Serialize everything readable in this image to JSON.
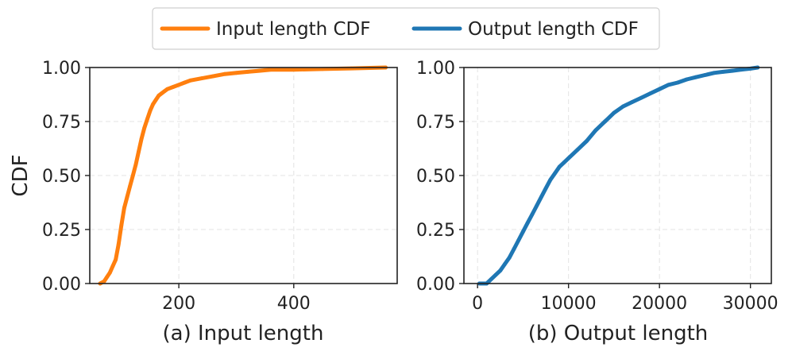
{
  "legend": {
    "location": "top-center",
    "entries": [
      {
        "label": "Input length CDF",
        "color": "#ff7f0e"
      },
      {
        "label": "Output length CDF",
        "color": "#1f77b4"
      }
    ]
  },
  "chart_data": [
    {
      "type": "line",
      "title": "",
      "xlabel": "(a) Input length",
      "ylabel": "CDF",
      "xlim": [
        45,
        580
      ],
      "ylim": [
        0,
        1
      ],
      "xticks": [
        200,
        400
      ],
      "xtick_labels": [
        "200",
        "400"
      ],
      "yticks": [
        0,
        0.25,
        0.5,
        0.75,
        1.0
      ],
      "ytick_labels": [
        "0.00",
        "0.25",
        "0.50",
        "0.75",
        "1.00"
      ],
      "grid": true,
      "series": [
        {
          "name": "Input length CDF",
          "color": "#ff7f0e",
          "x": [
            63,
            70,
            75,
            80,
            85,
            90,
            95,
            100,
            105,
            110,
            115,
            120,
            125,
            130,
            135,
            140,
            145,
            150,
            155,
            160,
            165,
            170,
            175,
            180,
            190,
            200,
            210,
            220,
            240,
            260,
            280,
            300,
            320,
            340,
            360,
            400,
            450,
            500,
            560
          ],
          "y": [
            0.0,
            0.01,
            0.03,
            0.05,
            0.08,
            0.11,
            0.18,
            0.27,
            0.35,
            0.4,
            0.45,
            0.5,
            0.55,
            0.61,
            0.67,
            0.72,
            0.76,
            0.8,
            0.83,
            0.85,
            0.87,
            0.88,
            0.89,
            0.9,
            0.91,
            0.92,
            0.93,
            0.94,
            0.95,
            0.96,
            0.97,
            0.975,
            0.98,
            0.985,
            0.99,
            0.99,
            0.993,
            0.996,
            1.0
          ]
        }
      ]
    },
    {
      "type": "line",
      "title": "",
      "xlabel": "(b) Output length",
      "ylabel": "",
      "xlim": [
        -1500,
        32300
      ],
      "ylim": [
        0,
        1
      ],
      "xticks": [
        0,
        10000,
        20000,
        30000
      ],
      "xtick_labels": [
        "0",
        "10000",
        "20000",
        "30000"
      ],
      "yticks": [
        0,
        0.25,
        0.5,
        0.75,
        1.0
      ],
      "ytick_labels": [
        "0.00",
        "0.25",
        "0.50",
        "0.75",
        "1.00"
      ],
      "grid": true,
      "series": [
        {
          "name": "Output length CDF",
          "color": "#1f77b4",
          "x": [
            200,
            1000,
            1500,
            2000,
            2500,
            3000,
            3500,
            4000,
            4500,
            5000,
            5500,
            6000,
            6500,
            7000,
            7500,
            8000,
            8500,
            9000,
            9500,
            10000,
            11000,
            12000,
            13000,
            14000,
            15000,
            16000,
            17000,
            18000,
            19000,
            20000,
            21000,
            22000,
            23000,
            24000,
            25000,
            26000,
            27000,
            28000,
            29000,
            30000,
            30800
          ],
          "y": [
            0.0,
            0.0,
            0.02,
            0.04,
            0.06,
            0.09,
            0.12,
            0.16,
            0.2,
            0.24,
            0.28,
            0.32,
            0.36,
            0.4,
            0.44,
            0.48,
            0.51,
            0.54,
            0.56,
            0.58,
            0.62,
            0.66,
            0.71,
            0.75,
            0.79,
            0.82,
            0.84,
            0.86,
            0.88,
            0.9,
            0.92,
            0.93,
            0.945,
            0.955,
            0.965,
            0.975,
            0.98,
            0.985,
            0.99,
            0.995,
            1.0
          ]
        }
      ]
    }
  ]
}
